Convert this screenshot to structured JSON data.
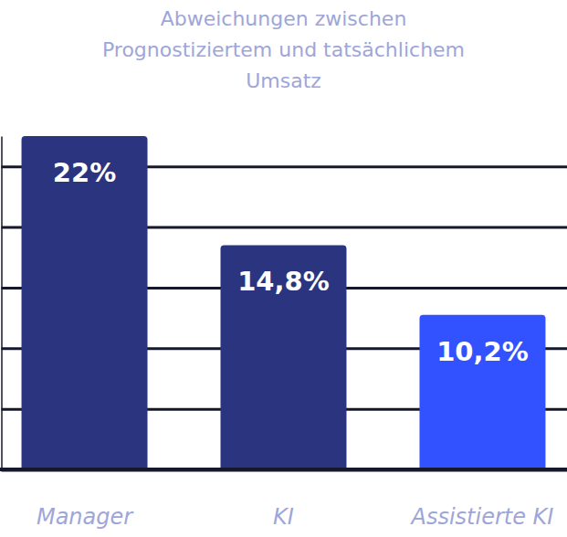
{
  "chart_data": {
    "type": "bar",
    "title": "Abweichungen zwischen\nPrognostiziertem und tatsächlichem\nUmsatz",
    "categories": [
      "Manager",
      "KI",
      "Assistierte KI"
    ],
    "values": [
      22,
      14.8,
      10.2
    ],
    "value_labels": [
      "22%",
      "14,8%",
      "10,2%"
    ],
    "colors": [
      "#2b347e",
      "#2b347e",
      "#3352ff"
    ],
    "ylim": [
      0,
      22
    ],
    "yticks": [
      0,
      4,
      8,
      12,
      16,
      20
    ],
    "grid": true,
    "data_labels": true,
    "tick_labels": "x"
  }
}
